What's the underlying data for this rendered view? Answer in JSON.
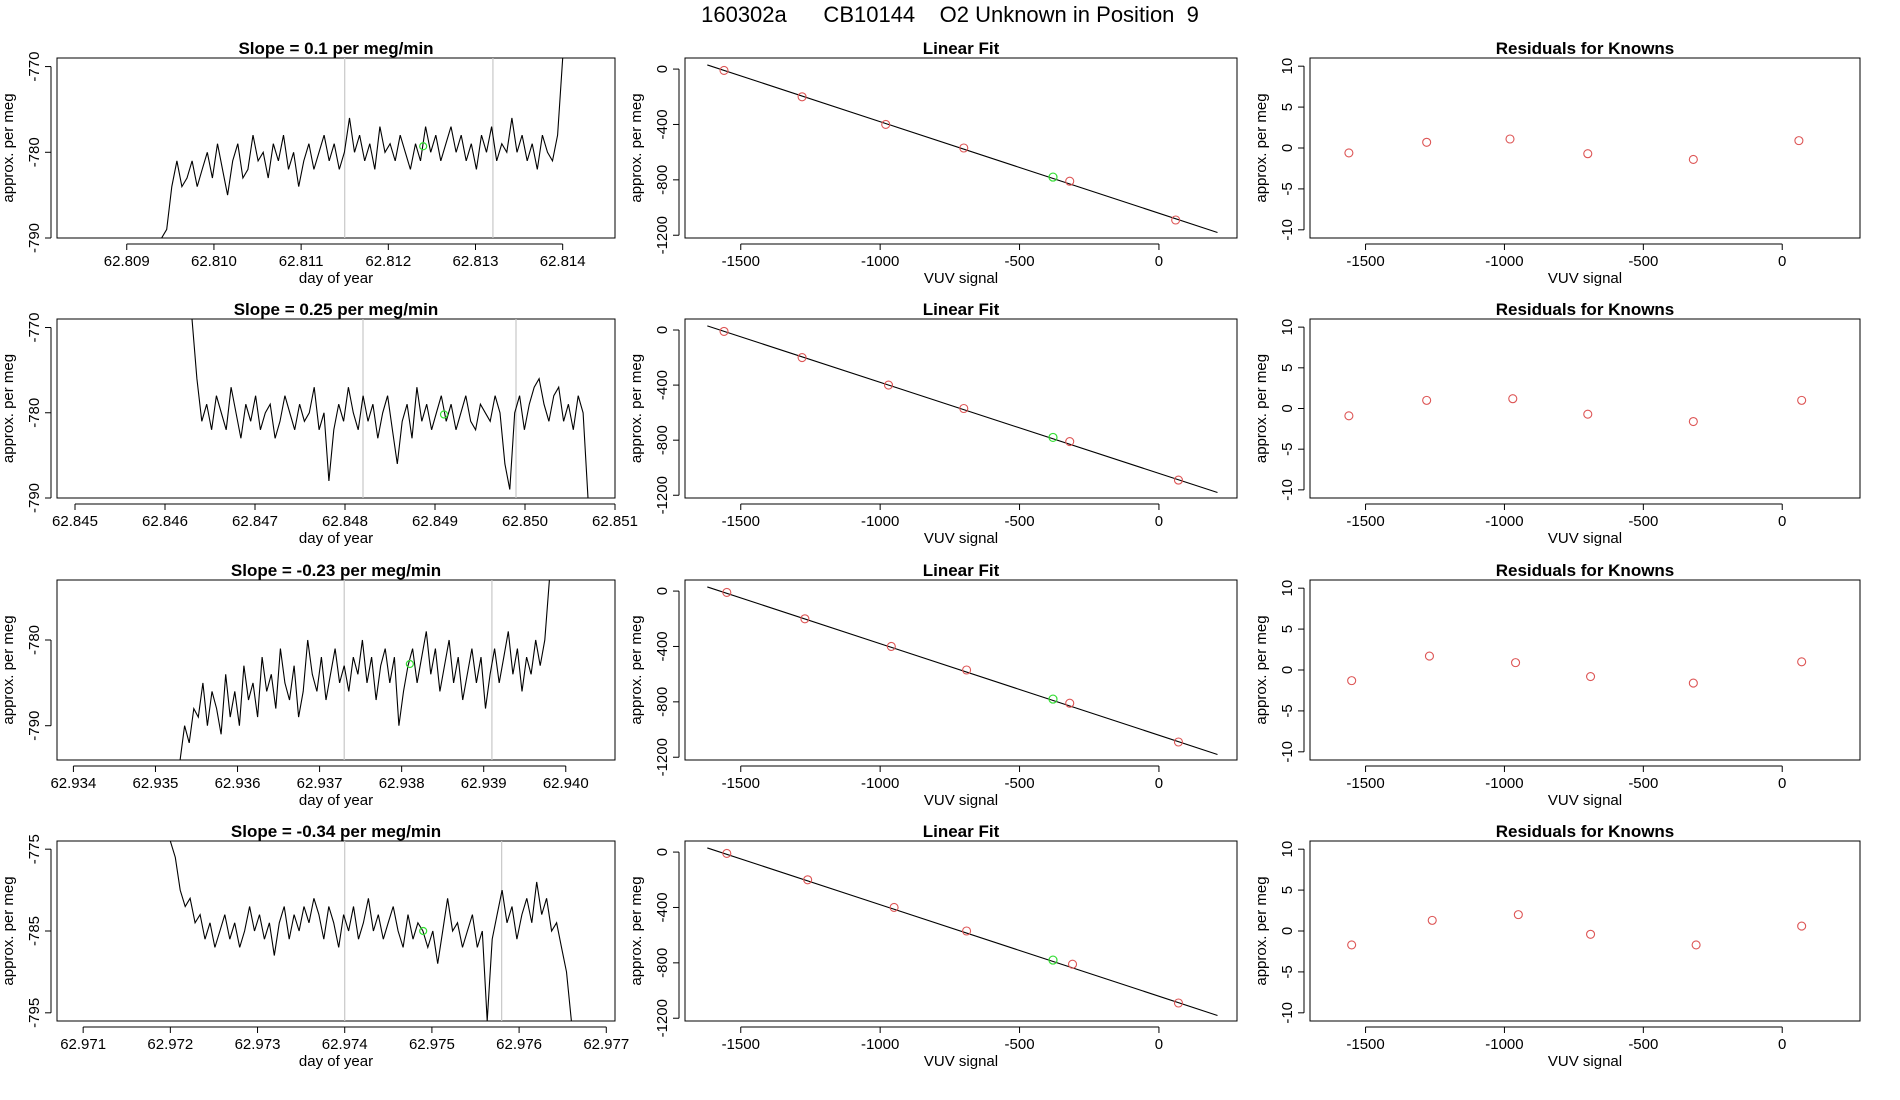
{
  "title": "160302a      CB10144    O2 Unknown in Position  9",
  "colors": {
    "trace": "#000000",
    "marker_known": "#dd5555",
    "marker_unknown": "#33dd33",
    "vline": "#c8c8c8",
    "frame": "#000000"
  },
  "chart_data": [
    {
      "type": "line",
      "title": "Slope =  0.1  per meg/min",
      "xlabel": "day of year",
      "ylabel": "approx. per meg",
      "xticks": [
        "62.809",
        "62.810",
        "62.811",
        "62.812",
        "62.813",
        "62.814"
      ],
      "yticks": [
        "-790",
        "-780",
        "-770"
      ],
      "xlim": [
        62.8082,
        62.8146
      ],
      "ylim": [
        -790,
        -769
      ],
      "vlines": [
        62.8115,
        62.8132
      ],
      "highlight_point": {
        "x": 62.8124,
        "y": -779.3
      },
      "series": [
        {
          "x_start": 62.8094,
          "x_end": 62.814,
          "values": [
            -790,
            -789,
            -784,
            -781,
            -784,
            -783,
            -781,
            -784,
            -782,
            -780,
            -783,
            -779,
            -782,
            -785,
            -781,
            -779,
            -783,
            -782,
            -778,
            -781,
            -780,
            -783,
            -779,
            -781,
            -778,
            -782,
            -780,
            -784,
            -781,
            -779,
            -782,
            -780,
            -778,
            -781,
            -779,
            -782,
            -780,
            -776,
            -780,
            -778,
            -781,
            -779,
            -782,
            -777,
            -780,
            -779,
            -781,
            -778,
            -780,
            -782,
            -779,
            -781,
            -777,
            -780,
            -778,
            -781,
            -779,
            -777,
            -780,
            -778,
            -781,
            -779,
            -782,
            -778,
            -780,
            -777,
            -781,
            -779,
            -780,
            -776,
            -780,
            -778,
            -781,
            -779,
            -782,
            -778,
            -780,
            -781,
            -778,
            -769
          ]
        }
      ]
    },
    {
      "type": "scatter",
      "title": "Linear Fit",
      "xlabel": "VUV signal",
      "ylabel": "approx. per meg",
      "xticks": [
        -1500,
        -1000,
        -500,
        0
      ],
      "yticks": [
        0,
        -400,
        -800,
        -1200
      ],
      "ytick_labels": [
        "0",
        "-400",
        "-800",
        "-1200"
      ],
      "xlim": [
        -1700,
        280
      ],
      "ylim": [
        -1220,
        80
      ],
      "fit_line": {
        "x": [
          -1620,
          210
        ],
        "y": [
          30,
          -1180
        ]
      },
      "points_known": {
        "x": [
          -1560,
          -1280,
          -980,
          -700,
          -320,
          60
        ],
        "y": [
          -10,
          -200,
          -400,
          -570,
          -810,
          -1090
        ]
      },
      "points_unknown": {
        "x": [
          -380
        ],
        "y": [
          -780
        ]
      }
    },
    {
      "type": "scatter",
      "title": "Residuals for Knowns",
      "xlabel": "VUV signal",
      "ylabel": "approx. per meg",
      "xticks": [
        -1500,
        -1000,
        -500,
        0
      ],
      "yticks": [
        10,
        5,
        0,
        -5,
        -10
      ],
      "xlim": [
        -1700,
        280
      ],
      "ylim": [
        -11,
        11
      ],
      "points_known": {
        "x": [
          -1560,
          -1280,
          -980,
          -700,
          -320,
          60
        ],
        "y": [
          -0.6,
          0.7,
          1.1,
          -0.7,
          -1.4,
          0.9
        ]
      }
    },
    {
      "type": "line",
      "title": "Slope =  0.25  per meg/min",
      "xlabel": "day of year",
      "ylabel": "approx. per meg",
      "xticks": [
        "62.845",
        "62.846",
        "62.847",
        "62.848",
        "62.849",
        "62.850",
        "62.851"
      ],
      "yticks": [
        "-790",
        "-780",
        "-770"
      ],
      "xlim": [
        62.8448,
        62.851
      ],
      "ylim": [
        -790,
        -769
      ],
      "vlines": [
        62.8482,
        62.8499
      ],
      "highlight_point": {
        "x": 62.8491,
        "y": -780.2
      },
      "series": [
        {
          "x_start": 62.8463,
          "x_end": 62.8507,
          "values": [
            -769,
            -776,
            -781,
            -779,
            -782,
            -778,
            -780,
            -782,
            -777,
            -780,
            -783,
            -779,
            -781,
            -778,
            -782,
            -780,
            -779,
            -783,
            -781,
            -778,
            -780,
            -782,
            -779,
            -781,
            -780,
            -777,
            -782,
            -780,
            -788,
            -782,
            -779,
            -781,
            -777,
            -780,
            -782,
            -778,
            -781,
            -779,
            -783,
            -780,
            -778,
            -782,
            -786,
            -781,
            -779,
            -783,
            -777,
            -781,
            -779,
            -782,
            -780,
            -778,
            -781,
            -779,
            -782,
            -780,
            -778,
            -781,
            -782,
            -779,
            -780,
            -781,
            -778,
            -780,
            -786,
            -789,
            -780,
            -778,
            -782,
            -779,
            -777,
            -776,
            -779,
            -781,
            -778,
            -777,
            -781,
            -779,
            -782,
            -778,
            -780,
            -790
          ]
        }
      ]
    },
    {
      "type": "scatter",
      "title": "Linear Fit",
      "xlabel": "VUV signal",
      "ylabel": "approx. per meg",
      "xticks": [
        -1500,
        -1000,
        -500,
        0
      ],
      "yticks": [
        0,
        -400,
        -800,
        -1200
      ],
      "ytick_labels": [
        "0",
        "-400",
        "-800",
        "-1200"
      ],
      "xlim": [
        -1700,
        280
      ],
      "ylim": [
        -1220,
        80
      ],
      "fit_line": {
        "x": [
          -1620,
          210
        ],
        "y": [
          30,
          -1180
        ]
      },
      "points_known": {
        "x": [
          -1560,
          -1280,
          -970,
          -700,
          -320,
          70
        ],
        "y": [
          -10,
          -200,
          -400,
          -570,
          -810,
          -1090
        ]
      },
      "points_unknown": {
        "x": [
          -380
        ],
        "y": [
          -780
        ]
      }
    },
    {
      "type": "scatter",
      "title": "Residuals for Knowns",
      "xlabel": "VUV signal",
      "ylabel": "approx. per meg",
      "xticks": [
        -1500,
        -1000,
        -500,
        0
      ],
      "yticks": [
        10,
        5,
        0,
        -5,
        -10
      ],
      "xlim": [
        -1700,
        280
      ],
      "ylim": [
        -11,
        11
      ],
      "points_known": {
        "x": [
          -1560,
          -1280,
          -970,
          -700,
          -320,
          70
        ],
        "y": [
          -0.9,
          1.0,
          1.2,
          -0.7,
          -1.6,
          1.0
        ]
      }
    },
    {
      "type": "line",
      "title": "Slope =  -0.23  per meg/min",
      "xlabel": "day of year",
      "ylabel": "approx. per meg",
      "xticks": [
        "62.934",
        "62.935",
        "62.936",
        "62.937",
        "62.938",
        "62.939",
        "62.940"
      ],
      "yticks": [
        "-790",
        "-780"
      ],
      "xlim": [
        62.9338,
        62.9406
      ],
      "ylim": [
        -794,
        -773
      ],
      "vlines": [
        62.9373,
        62.9391
      ],
      "highlight_point": {
        "x": 62.9381,
        "y": -782.8
      },
      "series": [
        {
          "x_start": 62.9353,
          "x_end": 62.9398,
          "values": [
            -794,
            -790,
            -792,
            -788,
            -789,
            -785,
            -790,
            -786,
            -788,
            -791,
            -784,
            -789,
            -786,
            -790,
            -783,
            -787,
            -785,
            -789,
            -782,
            -786,
            -784,
            -788,
            -781,
            -785,
            -787,
            -783,
            -789,
            -786,
            -780,
            -784,
            -786,
            -782,
            -787,
            -784,
            -781,
            -785,
            -783,
            -786,
            -782,
            -784,
            -780,
            -785,
            -782,
            -787,
            -783,
            -781,
            -785,
            -782,
            -790,
            -786,
            -783,
            -781,
            -785,
            -782,
            -779,
            -784,
            -781,
            -786,
            -783,
            -780,
            -785,
            -782,
            -787,
            -784,
            -781,
            -785,
            -782,
            -788,
            -784,
            -781,
            -785,
            -782,
            -779,
            -784,
            -781,
            -786,
            -782,
            -784,
            -780,
            -783,
            -780,
            -773
          ]
        }
      ]
    },
    {
      "type": "scatter",
      "title": "Linear Fit",
      "xlabel": "VUV signal",
      "ylabel": "approx. per meg",
      "xticks": [
        -1500,
        -1000,
        -500,
        0
      ],
      "yticks": [
        0,
        -400,
        -800,
        -1200
      ],
      "ytick_labels": [
        "0",
        "-400",
        "-800",
        "-1200"
      ],
      "xlim": [
        -1700,
        280
      ],
      "ylim": [
        -1220,
        80
      ],
      "fit_line": {
        "x": [
          -1620,
          210
        ],
        "y": [
          30,
          -1180
        ]
      },
      "points_known": {
        "x": [
          -1550,
          -1270,
          -960,
          -690,
          -320,
          70
        ],
        "y": [
          -10,
          -200,
          -400,
          -570,
          -810,
          -1090
        ]
      },
      "points_unknown": {
        "x": [
          -380
        ],
        "y": [
          -780
        ]
      }
    },
    {
      "type": "scatter",
      "title": "Residuals for Knowns",
      "xlabel": "VUV signal",
      "ylabel": "approx. per meg",
      "xticks": [
        -1500,
        -1000,
        -500,
        0
      ],
      "yticks": [
        10,
        5,
        0,
        -5,
        -10
      ],
      "xlim": [
        -1700,
        280
      ],
      "ylim": [
        -11,
        11
      ],
      "points_known": {
        "x": [
          -1550,
          -1270,
          -960,
          -690,
          -320,
          70
        ],
        "y": [
          -1.3,
          1.7,
          0.9,
          -0.8,
          -1.6,
          1.0
        ]
      }
    },
    {
      "type": "line",
      "title": "Slope =  -0.34  per meg/min",
      "xlabel": "day of year",
      "ylabel": "approx. per meg",
      "xticks": [
        "62.971",
        "62.972",
        "62.973",
        "62.974",
        "62.975",
        "62.976",
        "62.977"
      ],
      "yticks": [
        "-795",
        "-785",
        "-775"
      ],
      "xlim": [
        62.9707,
        62.9771
      ],
      "ylim": [
        -796,
        -774
      ],
      "vlines": [
        62.974,
        62.9758
      ],
      "highlight_point": {
        "x": 62.9749,
        "y": -785.0
      },
      "series": [
        {
          "x_start": 62.972,
          "x_end": 62.9766,
          "values": [
            -774,
            -776,
            -780,
            -782,
            -781,
            -784,
            -783,
            -786,
            -784,
            -787,
            -785,
            -783,
            -786,
            -784,
            -787,
            -785,
            -782,
            -785,
            -783,
            -786,
            -784,
            -788,
            -784,
            -782,
            -786,
            -783,
            -785,
            -782,
            -784,
            -781,
            -783,
            -786,
            -782,
            -784,
            -787,
            -783,
            -785,
            -782,
            -786,
            -784,
            -781,
            -785,
            -783,
            -786,
            -784,
            -782,
            -785,
            -787,
            -783,
            -786,
            -784,
            -785,
            -787,
            -785,
            -789,
            -785,
            -781,
            -785,
            -784,
            -787,
            -785,
            -783,
            -787,
            -785,
            -796,
            -786,
            -783,
            -780,
            -784,
            -782,
            -786,
            -783,
            -781,
            -784,
            -779,
            -783,
            -781,
            -785,
            -784,
            -787,
            -790,
            -796
          ]
        }
      ]
    },
    {
      "type": "scatter",
      "title": "Linear Fit",
      "xlabel": "VUV signal",
      "ylabel": "approx. per meg",
      "xticks": [
        -1500,
        -1000,
        -500,
        0
      ],
      "yticks": [
        0,
        -400,
        -800,
        -1200
      ],
      "ytick_labels": [
        "0",
        "-400",
        "-800",
        "-1200"
      ],
      "xlim": [
        -1700,
        280
      ],
      "ylim": [
        -1220,
        80
      ],
      "fit_line": {
        "x": [
          -1620,
          210
        ],
        "y": [
          30,
          -1180
        ]
      },
      "points_known": {
        "x": [
          -1550,
          -1260,
          -950,
          -690,
          -310,
          70
        ],
        "y": [
          -10,
          -200,
          -400,
          -570,
          -810,
          -1090
        ]
      },
      "points_unknown": {
        "x": [
          -380
        ],
        "y": [
          -780
        ]
      }
    },
    {
      "type": "scatter",
      "title": "Residuals for Knowns",
      "xlabel": "VUV signal",
      "ylabel": "approx. per meg",
      "xticks": [
        -1500,
        -1000,
        -500,
        0
      ],
      "yticks": [
        10,
        5,
        0,
        -5,
        -10
      ],
      "xlim": [
        -1700,
        280
      ],
      "ylim": [
        -11,
        11
      ],
      "points_known": {
        "x": [
          -1550,
          -1260,
          -950,
          -690,
          -310,
          70
        ],
        "y": [
          -1.7,
          1.3,
          2.0,
          -0.4,
          -1.7,
          0.6
        ]
      }
    }
  ]
}
